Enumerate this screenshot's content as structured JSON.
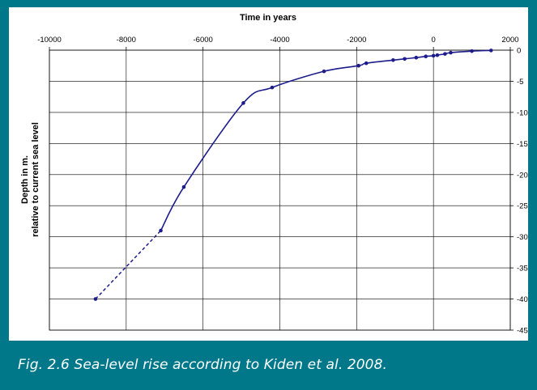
{
  "caption": "Fig. 2.6 Sea-level rise according to Kiden et al. 2008.",
  "colors": {
    "frame": "#00788a",
    "series": "#1c1c8c",
    "grid": "#000000"
  },
  "chart_data": {
    "type": "line",
    "title": "Time in years",
    "xlabel": "Time in years",
    "ylabel": "Depth in m. relative to current sea level",
    "ylabel_lines": [
      "Depth in m.",
      "relative to current sea level"
    ],
    "xlim": [
      -10000,
      2000
    ],
    "ylim": [
      0,
      45
    ],
    "x_ticks": [
      -10000,
      -8000,
      -6000,
      -4000,
      -2000,
      0,
      2000
    ],
    "y_ticks": [
      0,
      -5,
      -10,
      -15,
      -20,
      -25,
      -30,
      -35,
      -40,
      -45
    ],
    "x_tick_labels": [
      "-10000",
      "-8000",
      "-6000",
      "-4000",
      "-2000",
      "0",
      "2000"
    ],
    "y_tick_labels": [
      "0",
      "-5",
      "-10",
      "-15",
      "-20",
      "-25",
      "-30",
      "-35",
      "-40",
      "-45"
    ],
    "x_axis_position": "top",
    "y_axis_position": "right",
    "grid": {
      "horizontal": true,
      "vertical": true
    },
    "dashed_segment": {
      "x": [
        -8800,
        -7100
      ],
      "depth": [
        40,
        29
      ]
    },
    "series": [
      {
        "x": [
          -7100,
          -6500,
          -4950,
          -4200,
          -2850,
          -1950,
          -1750,
          -1050,
          -750,
          -450,
          -200,
          0,
          100,
          300,
          450,
          1000,
          1500
        ],
        "depth": [
          29,
          22,
          8.5,
          6,
          3.4,
          2.5,
          2.1,
          1.6,
          1.4,
          1.2,
          1.0,
          0.9,
          0.8,
          0.6,
          0.4,
          0.15,
          0.05
        ]
      }
    ]
  }
}
